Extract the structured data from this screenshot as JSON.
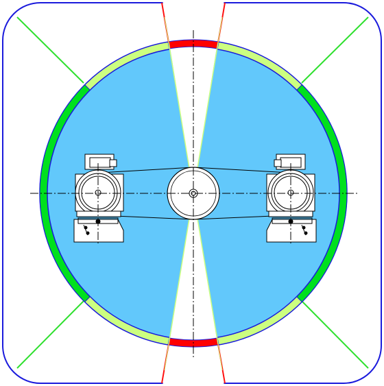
{
  "colors": {
    "frame": "#1a1adc",
    "disk_fill": "#62c8fb",
    "disk_stroke": "#1a1adc",
    "ring_light": "#ccff80",
    "ring_dark": "#00e01e",
    "ring_red": "#ff0000",
    "green_line": "#2fe02f",
    "red_line": "#ff1010",
    "ink": "#000000",
    "paper": "#ffffff"
  },
  "components": {
    "frame": "rounded-square",
    "disk": "circle",
    "ring_segments": [
      "light-green",
      "dark-green",
      "red"
    ],
    "motors": [
      "left-motor",
      "right-motor"
    ],
    "pulley": "center-pulley",
    "belts": "upper-and-lower-belt",
    "centerlines": "dash-dot"
  }
}
